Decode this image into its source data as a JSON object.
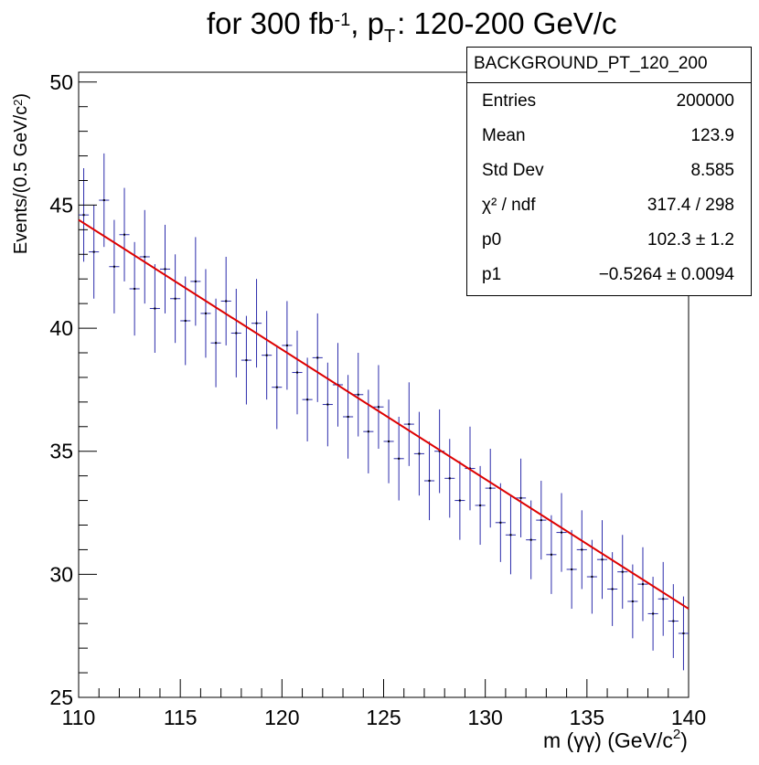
{
  "chart_data": {
    "type": "scatter",
    "title_prefix": "for 300 fb",
    "title_lumi_exp": "-1",
    "title_mid": ", p",
    "title_sub": "T",
    "title_suffix": ": 120-200",
    "title_unit": "GeV/c",
    "xlabel_prefix": "m (γγ) (GeV/c",
    "xlabel_exp": "2",
    "xlabel_suffix": ")",
    "ylabel_prefix": "Events/(0.5 GeV/c",
    "ylabel_exp": "2",
    "ylabel_suffix": ")",
    "xlim": [
      110,
      140
    ],
    "ylim": [
      25,
      50.4
    ],
    "x_ticks": [
      110,
      115,
      120,
      125,
      130,
      135,
      140
    ],
    "y_ticks": [
      25,
      30,
      35,
      40,
      45,
      50
    ],
    "n_bins": 60,
    "bin_width": 0.5,
    "series": [
      {
        "name": "data",
        "color": "#2b2bab",
        "x": [
          110.25,
          110.75,
          111.25,
          111.75,
          112.25,
          112.75,
          113.25,
          113.75,
          114.25,
          114.75,
          115.25,
          115.75,
          116.25,
          116.75,
          117.25,
          117.75,
          118.25,
          118.75,
          119.25,
          119.75,
          120.25,
          120.75,
          121.25,
          121.75,
          122.25,
          122.75,
          123.25,
          123.75,
          124.25,
          124.75,
          125.25,
          125.75,
          126.25,
          126.75,
          127.25,
          127.75,
          128.25,
          128.75,
          129.25,
          129.75,
          130.25,
          130.75,
          131.25,
          131.75,
          132.25,
          132.75,
          133.25,
          133.75,
          134.25,
          134.75,
          135.25,
          135.75,
          136.25,
          136.75,
          137.25,
          137.75,
          138.25,
          138.75,
          139.25,
          139.75
        ],
        "y": [
          44.6,
          43.1,
          45.2,
          42.5,
          43.8,
          41.6,
          42.9,
          40.8,
          42.4,
          41.2,
          40.3,
          41.9,
          40.6,
          39.4,
          41.1,
          39.8,
          38.7,
          40.2,
          38.9,
          37.6,
          39.3,
          38.2,
          37.1,
          38.8,
          36.9,
          37.7,
          36.4,
          37.3,
          35.8,
          36.8,
          35.4,
          34.7,
          36.1,
          34.9,
          33.8,
          35.0,
          33.9,
          33.0,
          34.3,
          32.8,
          33.5,
          32.1,
          31.6,
          33.1,
          31.4,
          32.2,
          30.8,
          31.7,
          30.2,
          31.0,
          29.9,
          30.6,
          29.4,
          30.1,
          28.9,
          29.6,
          28.4,
          29.0,
          28.1,
          27.6
        ],
        "err": [
          1.9,
          1.9,
          1.9,
          1.9,
          1.9,
          1.9,
          1.9,
          1.8,
          1.8,
          1.8,
          1.8,
          1.8,
          1.8,
          1.8,
          1.8,
          1.8,
          1.8,
          1.8,
          1.8,
          1.7,
          1.8,
          1.7,
          1.7,
          1.8,
          1.7,
          1.7,
          1.7,
          1.7,
          1.7,
          1.7,
          1.7,
          1.7,
          1.7,
          1.7,
          1.6,
          1.7,
          1.6,
          1.6,
          1.7,
          1.6,
          1.6,
          1.6,
          1.6,
          1.6,
          1.6,
          1.6,
          1.6,
          1.6,
          1.6,
          1.6,
          1.5,
          1.6,
          1.5,
          1.5,
          1.5,
          1.5,
          1.5,
          1.5,
          1.5,
          1.5
        ]
      },
      {
        "name": "fit",
        "type": "line",
        "color": "#dd0000",
        "x": [
          110,
          140
        ],
        "y": [
          44.4,
          28.6
        ]
      }
    ]
  },
  "stats_box": {
    "name": "BACKGROUND_PT_120_200",
    "rows": [
      {
        "label": "Entries",
        "value": "200000"
      },
      {
        "label": "Mean",
        "value": "123.9"
      },
      {
        "label": "Std Dev",
        "value": "8.585"
      },
      {
        "label": "χ² / ndf",
        "value": "317.4 / 298"
      },
      {
        "label": "p0",
        "value": "102.3 ± 1.2"
      },
      {
        "label": "p1",
        "value": "−0.5264 ± 0.0094"
      }
    ]
  }
}
